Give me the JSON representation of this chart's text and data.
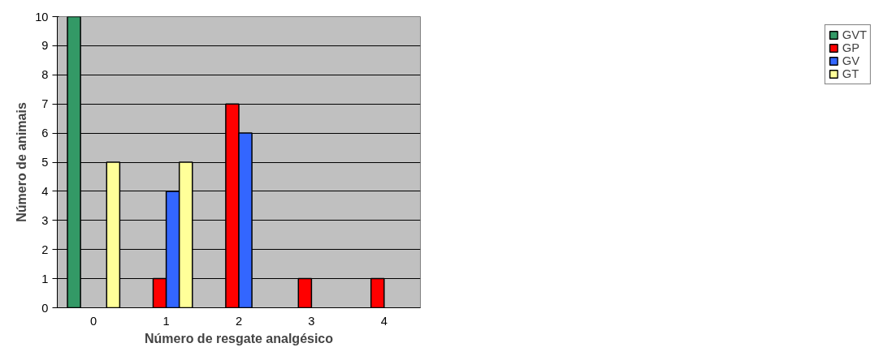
{
  "chart_data": {
    "type": "bar",
    "xlabel": "Número de resgate analgésico",
    "ylabel": "Número de animais",
    "categories": [
      "0",
      "1",
      "2",
      "3",
      "4"
    ],
    "series": [
      {
        "name": "GVT",
        "color": "#339966",
        "values": [
          10,
          null,
          null,
          null,
          null
        ]
      },
      {
        "name": "GP",
        "color": "#ff0000",
        "values": [
          null,
          1,
          7,
          1,
          1
        ]
      },
      {
        "name": "GV",
        "color": "#3366ff",
        "values": [
          null,
          4,
          6,
          null,
          null
        ]
      },
      {
        "name": "GT",
        "color": "#ffff99",
        "values": [
          5,
          5,
          null,
          null,
          null
        ]
      }
    ],
    "ylim": [
      0,
      10
    ],
    "yticks": [
      0,
      1,
      2,
      3,
      4,
      5,
      6,
      7,
      8,
      9,
      10
    ],
    "grid": "y",
    "legend": "right"
  }
}
